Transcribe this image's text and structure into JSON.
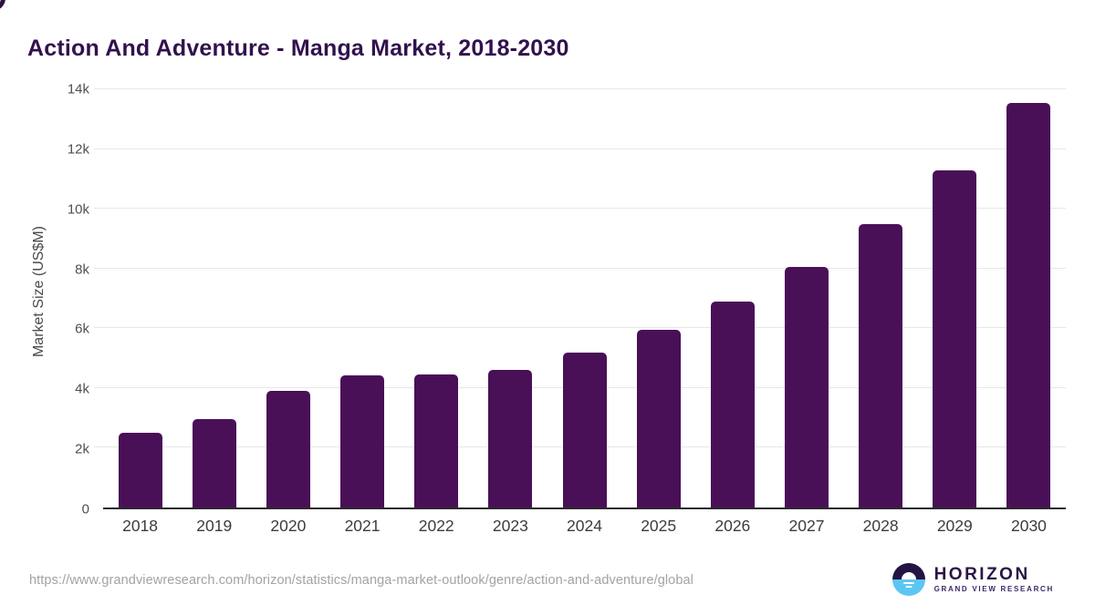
{
  "title": "Action And Adventure - Manga Market, 2018-2030",
  "chart_data": {
    "type": "bar",
    "title": "Action And Adventure - Manga Market, 2018-2030",
    "categories": [
      "2018",
      "2019",
      "2020",
      "2021",
      "2022",
      "2023",
      "2024",
      "2025",
      "2026",
      "2027",
      "2028",
      "2029",
      "2030"
    ],
    "values": [
      2500,
      2950,
      3900,
      4430,
      4450,
      4600,
      5200,
      5950,
      6900,
      8050,
      9500,
      11300,
      13550
    ],
    "xlabel": "",
    "ylabel": "Market Size (US$M)",
    "ylim": [
      0,
      14000
    ],
    "ytick_step": 2000,
    "ytick_labels": [
      "0",
      "2k",
      "4k",
      "6k",
      "8k",
      "10k",
      "12k",
      "14k"
    ],
    "grid": true,
    "legend": "none",
    "bar_color": "#491057"
  },
  "colors": {
    "title": "#31124d",
    "bar": "#491057",
    "axis_line": "#2b2b2b",
    "gridline": "#e7e7e7",
    "tick_label": "#3c3c3c",
    "source_text": "#a3a3a3",
    "logo_purple": "#241442",
    "logo_blue": "#5bc6f2"
  },
  "footer": {
    "source_url": "https://www.grandviewresearch.com/horizon/statistics/manga-market-outlook/genre/action-and-adventure/global",
    "logo": {
      "brand": "HORIZON",
      "sub_brand": "GRAND VIEW RESEARCH"
    }
  }
}
